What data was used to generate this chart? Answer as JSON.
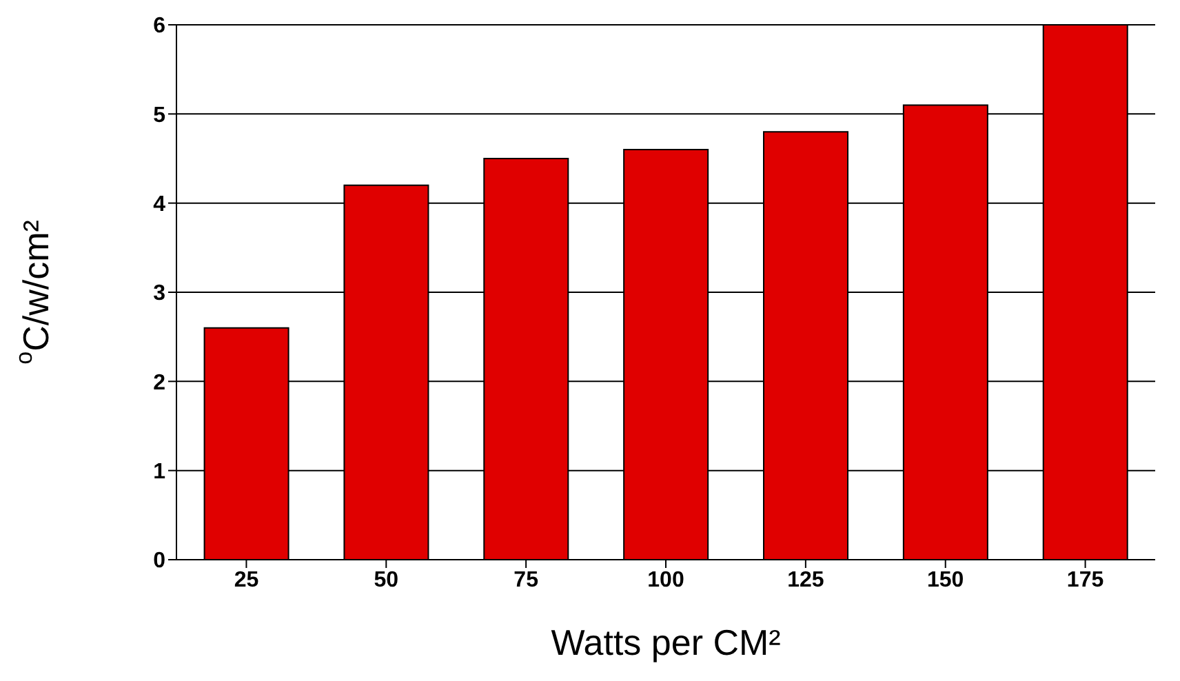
{
  "chart_data": {
    "type": "bar",
    "xlabel": "Watts per CM²",
    "ylabel": "$^{o}$C/w/cm²",
    "categories": [
      "25",
      "50",
      "75",
      "100",
      "125",
      "150",
      "175"
    ],
    "values": [
      2.6,
      4.2,
      4.5,
      4.6,
      4.8,
      5.1,
      6.0
    ],
    "color": "#e00000",
    "ylim": [
      0,
      6
    ],
    "yticks": [
      0,
      1,
      2,
      3,
      4,
      5,
      6
    ],
    "grid": "y"
  }
}
